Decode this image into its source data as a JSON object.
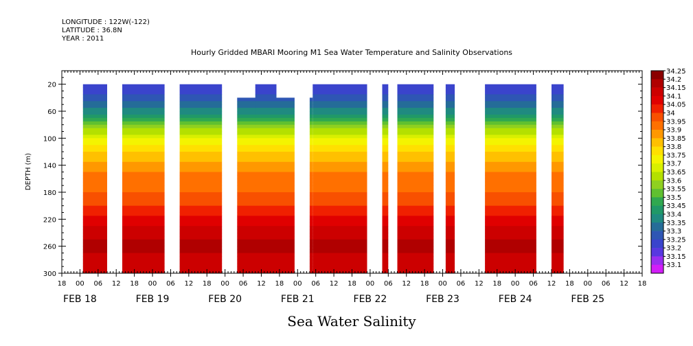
{
  "meta": {
    "longitude": "LONGITUDE : 122W(-122)",
    "latitude": "LATITUDE : 36.8N",
    "year": "YEAR : 2011"
  },
  "chart_data": {
    "type": "heatmap",
    "title": "Hourly Gridded MBARI Mooring M1 Sea Water Temperature and Salinity Observations",
    "xlabel": "Sea Water Salinity",
    "ylabel": "DEPTH (m)",
    "x_unit": "hours since 2011-02-18 00:00",
    "xlim": [
      -6,
      186
    ],
    "ylim": [
      300,
      0
    ],
    "y_ticks": [
      20,
      60,
      100,
      140,
      180,
      220,
      260,
      300
    ],
    "x_ticks": [
      {
        "h": -6,
        "label": "18"
      },
      {
        "h": 0,
        "label": "00"
      },
      {
        "h": 6,
        "label": "06"
      },
      {
        "h": 12,
        "label": "12"
      },
      {
        "h": 18,
        "label": "18"
      },
      {
        "h": 24,
        "label": "00"
      },
      {
        "h": 30,
        "label": "06"
      },
      {
        "h": 36,
        "label": "12"
      },
      {
        "h": 42,
        "label": "18"
      },
      {
        "h": 48,
        "label": "00"
      },
      {
        "h": 54,
        "label": "06"
      },
      {
        "h": 60,
        "label": "12"
      },
      {
        "h": 66,
        "label": "18"
      },
      {
        "h": 72,
        "label": "00"
      },
      {
        "h": 78,
        "label": "06"
      },
      {
        "h": 84,
        "label": "12"
      },
      {
        "h": 90,
        "label": "18"
      },
      {
        "h": 96,
        "label": "00"
      },
      {
        "h": 102,
        "label": "06"
      },
      {
        "h": 108,
        "label": "12"
      },
      {
        "h": 114,
        "label": "18"
      },
      {
        "h": 120,
        "label": "00"
      },
      {
        "h": 126,
        "label": "06"
      },
      {
        "h": 132,
        "label": "12"
      },
      {
        "h": 138,
        "label": "18"
      },
      {
        "h": 144,
        "label": "00"
      },
      {
        "h": 150,
        "label": "06"
      },
      {
        "h": 156,
        "label": "12"
      },
      {
        "h": 162,
        "label": "18"
      },
      {
        "h": 168,
        "label": "00"
      },
      {
        "h": 174,
        "label": "06"
      },
      {
        "h": 180,
        "label": "12"
      },
      {
        "h": 186,
        "label": "18"
      }
    ],
    "date_labels": [
      {
        "h": 0,
        "label": "FEB 18"
      },
      {
        "h": 24,
        "label": "FEB 19"
      },
      {
        "h": 48,
        "label": "FEB 20"
      },
      {
        "h": 72,
        "label": "FEB 21"
      },
      {
        "h": 96,
        "label": "FEB 22"
      },
      {
        "h": 120,
        "label": "FEB 23"
      },
      {
        "h": 144,
        "label": "FEB 24"
      },
      {
        "h": 168,
        "label": "FEB 25"
      }
    ],
    "data_segments": [
      {
        "start": 1,
        "end": 9,
        "top_depth": 20
      },
      {
        "start": 14,
        "end": 28,
        "top_depth": 20
      },
      {
        "start": 33,
        "end": 47,
        "top_depth": 20
      },
      {
        "start": 52,
        "end": 71,
        "top_depth": 40
      },
      {
        "start": 58,
        "end": 65,
        "top_depth": 20
      },
      {
        "start": 76,
        "end": 77,
        "top_depth": 40
      },
      {
        "start": 77,
        "end": 95,
        "top_depth": 20
      },
      {
        "start": 100,
        "end": 102,
        "top_depth": 20
      },
      {
        "start": 105,
        "end": 117,
        "top_depth": 20
      },
      {
        "start": 121,
        "end": 124,
        "top_depth": 20
      },
      {
        "start": 134,
        "end": 151,
        "top_depth": 20
      },
      {
        "start": 156,
        "end": 160,
        "top_depth": 20
      }
    ],
    "salinity_profile": [
      {
        "depth": 20,
        "value": 33.26
      },
      {
        "depth": 40,
        "value": 33.32
      },
      {
        "depth": 60,
        "value": 33.42
      },
      {
        "depth": 75,
        "value": 33.55
      },
      {
        "depth": 90,
        "value": 33.68
      },
      {
        "depth": 105,
        "value": 33.78
      },
      {
        "depth": 120,
        "value": 33.85
      },
      {
        "depth": 140,
        "value": 33.92
      },
      {
        "depth": 160,
        "value": 33.97
      },
      {
        "depth": 180,
        "value": 34.0
      },
      {
        "depth": 200,
        "value": 34.05
      },
      {
        "depth": 220,
        "value": 34.12
      },
      {
        "depth": 240,
        "value": 34.17
      },
      {
        "depth": 260,
        "value": 34.22
      },
      {
        "depth": 280,
        "value": 34.17
      },
      {
        "depth": 300,
        "value": 34.15
      }
    ],
    "colorbar": {
      "levels": [
        "34.25",
        "34.2",
        "34.15",
        "34.1",
        "34.05",
        "34",
        "33.95",
        "33.9",
        "33.85",
        "33.8",
        "33.75",
        "33.7",
        "33.65",
        "33.6",
        "33.55",
        "33.5",
        "33.45",
        "33.4",
        "33.35",
        "33.3",
        "33.25",
        "33.2",
        "33.15",
        "33.1"
      ],
      "colors": [
        "#8b0000",
        "#b00000",
        "#cc0000",
        "#e00000",
        "#f02000",
        "#f85000",
        "#ff7000",
        "#ff9800",
        "#ffc000",
        "#ffe000",
        "#f4f400",
        "#d8f000",
        "#b4e000",
        "#8fd020",
        "#60c030",
        "#30a850",
        "#209868",
        "#1f8a80",
        "#256c98",
        "#2e56b4",
        "#3a44cc",
        "#5838e0",
        "#9a2ef0",
        "#d21ef8"
      ]
    }
  }
}
